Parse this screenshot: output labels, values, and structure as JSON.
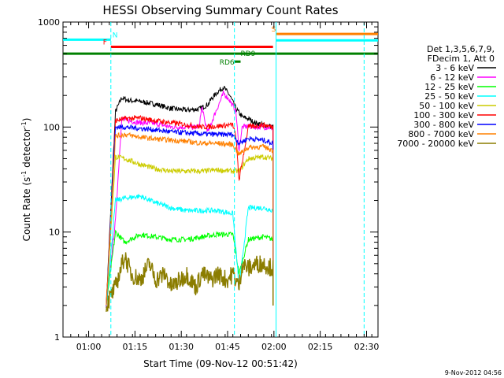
{
  "chart_data": {
    "type": "line",
    "title": "HESSI Observing Summary Count Rates",
    "xlabel": "Start Time (09-Nov-12 00:51:42)",
    "ylabel": "Count Rate (s⁻¹ detector⁻¹)",
    "ylabel_main": "Count Rate (s",
    "ylabel_sup1": "-1",
    "ylabel_mid": " detector",
    "ylabel_sup2": "-1",
    "ylabel_end": ")",
    "y_scale": "log",
    "ylim": [
      1,
      1000
    ],
    "xlim_minutes_after_start": [
      0,
      102
    ],
    "x_tick_minutes_after_start": [
      8.3,
      23.3,
      38.3,
      53.3,
      68.3,
      83.3,
      98.3
    ],
    "x_tick_labels": [
      "01:00",
      "01:15",
      "01:30",
      "01:45",
      "02:00",
      "02:15",
      "02:30"
    ],
    "y_tick_values": [
      1,
      10,
      100,
      1000
    ],
    "y_tick_labels": [
      "1",
      "10",
      "100",
      "1000"
    ],
    "legend_header": [
      "Det 1,3,5,6,7,9,",
      "FDecim 1, Att 0"
    ],
    "legend_position": "right",
    "grid": false,
    "data_window_minutes": [
      14,
      68
    ],
    "series": [
      {
        "name": "3 - 6 keV",
        "color": "#000000",
        "x": [
          14,
          17,
          19,
          21,
          25,
          30,
          35,
          40,
          44,
          47,
          48,
          50,
          52,
          54,
          56,
          58,
          60,
          62,
          65,
          68
        ],
        "values": [
          2,
          140,
          190,
          180,
          175,
          165,
          150,
          145,
          148,
          165,
          185,
          215,
          240,
          200,
          150,
          125,
          120,
          110,
          105,
          100
        ]
      },
      {
        "name": "6 - 12 keV",
        "color": "#ff00ff",
        "x": [
          14,
          17,
          19,
          21,
          25,
          30,
          35,
          40,
          44,
          45,
          46,
          47,
          49,
          52,
          54,
          56,
          57,
          58,
          60,
          62,
          65,
          68
        ],
        "values": [
          2,
          13,
          120,
          115,
          110,
          108,
          100,
          100,
          100,
          155,
          110,
          90,
          130,
          210,
          180,
          140,
          60,
          100,
          102,
          100,
          100,
          98
        ]
      },
      {
        "name": "12 - 25 keV",
        "color": "#00ff00",
        "x": [
          14,
          17,
          20,
          25,
          30,
          35,
          40,
          45,
          50,
          55,
          57,
          60,
          65,
          68
        ],
        "values": [
          2,
          10,
          8,
          9.5,
          9,
          8.5,
          8.5,
          9,
          9.5,
          9.5,
          4,
          8.5,
          9,
          8.5
        ]
      },
      {
        "name": "25 - 50 keV",
        "color": "#00ffff",
        "x": [
          14,
          17,
          20,
          25,
          30,
          35,
          40,
          45,
          50,
          55,
          57,
          60,
          65,
          68
        ],
        "values": [
          2,
          20,
          21,
          22,
          19,
          17,
          16,
          16,
          16,
          15,
          3,
          17,
          17,
          16
        ]
      },
      {
        "name": "50 - 100 keV",
        "color": "#cccc00",
        "x": [
          14,
          17,
          20,
          25,
          30,
          35,
          40,
          45,
          50,
          55,
          57,
          60,
          65,
          68
        ],
        "values": [
          2,
          52,
          50,
          44,
          40,
          38,
          38,
          38,
          39,
          38,
          38,
          50,
          52,
          50
        ]
      },
      {
        "name": "100 - 300 keV",
        "color": "#ff0000",
        "x": [
          14,
          17,
          20,
          25,
          30,
          35,
          40,
          45,
          50,
          55,
          56,
          57,
          60,
          65,
          68
        ],
        "values": [
          2,
          115,
          120,
          122,
          115,
          110,
          105,
          100,
          102,
          105,
          80,
          31,
          100,
          105,
          100
        ]
      },
      {
        "name": "300 - 800 keV",
        "color": "#0000ff",
        "x": [
          14,
          17,
          20,
          25,
          30,
          35,
          40,
          45,
          50,
          55,
          57,
          60,
          65,
          68
        ],
        "values": [
          2,
          100,
          100,
          97,
          94,
          90,
          88,
          86,
          85,
          85,
          70,
          78,
          75,
          70
        ]
      },
      {
        "name": "800 - 7000 keV",
        "color": "#ff8000",
        "x": [
          14,
          17,
          20,
          25,
          30,
          35,
          40,
          45,
          50,
          55,
          57,
          60,
          65,
          68
        ],
        "values": [
          2,
          82,
          85,
          80,
          77,
          75,
          73,
          70,
          70,
          68,
          55,
          64,
          65,
          60
        ]
      },
      {
        "name": "7000 - 20000 keV",
        "color": "#8b7d00",
        "x": [
          14,
          17,
          20,
          22,
          25,
          28,
          30,
          33,
          35,
          38,
          40,
          43,
          45,
          48,
          50,
          53,
          55,
          57,
          58,
          60,
          63,
          65,
          68
        ],
        "values": [
          2,
          3,
          6,
          4,
          3.5,
          5,
          3.5,
          4,
          3,
          3.5,
          4,
          3,
          4,
          3.5,
          4,
          3.5,
          4,
          3,
          5,
          4.5,
          5,
          5,
          4.5
        ]
      }
    ],
    "flags": [
      {
        "label": "N",
        "color": "#00ffff",
        "x": [
          0,
          15.5
        ],
        "y": 680
      },
      {
        "label": "F",
        "color": "#ff0000",
        "x": [
          15.5,
          68
        ],
        "y": 580
      },
      {
        "label": "S",
        "color": "#ff8000",
        "x": [
          69,
          102
        ],
        "y": 770
      },
      {
        "label": "",
        "color": "#00ffff",
        "x": [
          69,
          102
        ],
        "y": 670
      },
      {
        "label": "",
        "color": "#008000",
        "x": [
          0,
          102
        ],
        "y": 500
      },
      {
        "label": "RD6",
        "color": "#008000",
        "x": [
          55.5,
          57.5
        ],
        "y": 420
      },
      {
        "label": "RD9",
        "color": "#008000",
        "x": [
          57.5,
          59
        ],
        "y": 500
      }
    ],
    "vlines": [
      {
        "color": "#00ffff",
        "x": 15.5,
        "dashed": true
      },
      {
        "color": "#00ffff",
        "x": 55.5,
        "dashed": true
      },
      {
        "color": "#00ffff",
        "x": 69,
        "dashed": false
      },
      {
        "color": "#00ffff",
        "x": 97.5,
        "dashed": true
      }
    ],
    "timestamp": "9-Nov-2012 04:56"
  }
}
